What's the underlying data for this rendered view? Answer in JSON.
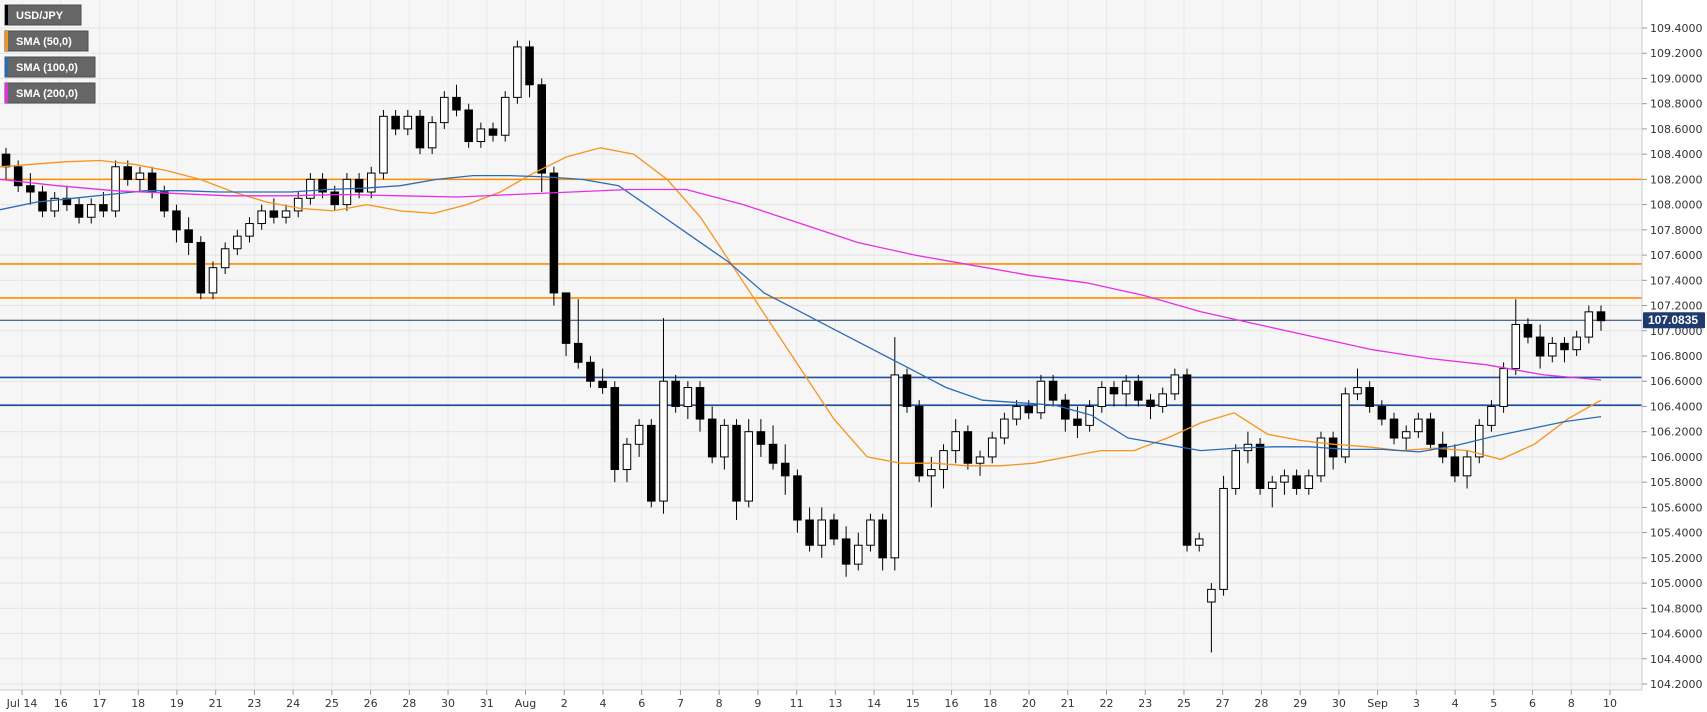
{
  "chart_data": {
    "type": "candlestick",
    "symbol": "USD/JPY",
    "ylim": [
      104.2,
      109.4
    ],
    "y_ticks": [
      "109.4000",
      "109.2000",
      "109.0000",
      "108.8000",
      "108.6000",
      "108.4000",
      "108.2000",
      "108.0000",
      "107.8000",
      "107.6000",
      "107.4000",
      "107.2000",
      "107.0000",
      "106.8000",
      "106.6000",
      "106.4000",
      "106.2000",
      "106.0000",
      "105.8000",
      "105.6000",
      "105.4000",
      "105.2000",
      "105.0000",
      "104.8000",
      "104.6000",
      "104.4000",
      "104.2000"
    ],
    "x_ticks": [
      "Jul 14",
      "16",
      "17",
      "18",
      "19",
      "21",
      "23",
      "24",
      "25",
      "26",
      "28",
      "30",
      "31",
      "Aug",
      "2",
      "4",
      "6",
      "7",
      "8",
      "9",
      "11",
      "13",
      "14",
      "15",
      "16",
      "18",
      "20",
      "21",
      "22",
      "23",
      "25",
      "27",
      "28",
      "29",
      "30",
      "Sep",
      "3",
      "4",
      "5",
      "6",
      "8",
      "10"
    ],
    "candles": [
      [
        108.4,
        108.45,
        108.2,
        108.3
      ],
      [
        108.3,
        108.35,
        108.1,
        108.15
      ],
      [
        108.15,
        108.25,
        108.0,
        108.1
      ],
      [
        108.1,
        108.15,
        107.9,
        107.95
      ],
      [
        107.95,
        108.1,
        107.9,
        108.05
      ],
      [
        108.05,
        108.15,
        107.95,
        108.0
      ],
      [
        108.0,
        108.05,
        107.85,
        107.9
      ],
      [
        107.9,
        108.05,
        107.85,
        108.0
      ],
      [
        108.0,
        108.1,
        107.9,
        107.95
      ],
      [
        107.95,
        108.35,
        107.9,
        108.3
      ],
      [
        108.3,
        108.35,
        108.15,
        108.2
      ],
      [
        108.2,
        108.3,
        108.1,
        108.25
      ],
      [
        108.25,
        108.3,
        108.05,
        108.1
      ],
      [
        108.1,
        108.15,
        107.9,
        107.95
      ],
      [
        107.95,
        108.0,
        107.7,
        107.8
      ],
      [
        107.8,
        107.9,
        107.6,
        107.7
      ],
      [
        107.7,
        107.75,
        107.25,
        107.3
      ],
      [
        107.3,
        107.55,
        107.25,
        107.5
      ],
      [
        107.5,
        107.7,
        107.45,
        107.65
      ],
      [
        107.65,
        107.8,
        107.6,
        107.75
      ],
      [
        107.75,
        107.9,
        107.7,
        107.85
      ],
      [
        107.85,
        108.0,
        107.8,
        107.95
      ],
      [
        107.95,
        108.05,
        107.85,
        107.9
      ],
      [
        107.9,
        108.0,
        107.85,
        107.95
      ],
      [
        107.95,
        108.1,
        107.9,
        108.05
      ],
      [
        108.05,
        108.25,
        108.0,
        108.2
      ],
      [
        108.2,
        108.25,
        108.05,
        108.1
      ],
      [
        108.1,
        108.15,
        107.95,
        108.0
      ],
      [
        108.0,
        108.25,
        107.95,
        108.2
      ],
      [
        108.2,
        108.25,
        108.05,
        108.1
      ],
      [
        108.1,
        108.3,
        108.05,
        108.25
      ],
      [
        108.25,
        108.75,
        108.2,
        108.7
      ],
      [
        108.7,
        108.75,
        108.55,
        108.6
      ],
      [
        108.6,
        108.75,
        108.55,
        108.7
      ],
      [
        108.7,
        108.75,
        108.4,
        108.45
      ],
      [
        108.45,
        108.7,
        108.4,
        108.65
      ],
      [
        108.65,
        108.9,
        108.6,
        108.85
      ],
      [
        108.85,
        108.95,
        108.7,
        108.75
      ],
      [
        108.75,
        108.8,
        108.45,
        108.5
      ],
      [
        108.5,
        108.65,
        108.45,
        108.6
      ],
      [
        108.6,
        108.65,
        108.5,
        108.55
      ],
      [
        108.55,
        108.9,
        108.5,
        108.85
      ],
      [
        108.85,
        109.3,
        108.8,
        109.25
      ],
      [
        109.25,
        109.3,
        108.85,
        108.95
      ],
      [
        108.95,
        109.0,
        108.1,
        108.25
      ],
      [
        108.25,
        108.3,
        107.2,
        107.3
      ],
      [
        107.3,
        107.3,
        106.8,
        106.9
      ],
      [
        106.9,
        107.25,
        106.7,
        106.75
      ],
      [
        106.75,
        106.8,
        106.55,
        106.6
      ],
      [
        106.6,
        106.7,
        106.5,
        106.55
      ],
      [
        106.55,
        106.6,
        105.8,
        105.9
      ],
      [
        105.9,
        106.15,
        105.8,
        106.1
      ],
      [
        106.1,
        106.3,
        106.0,
        106.25
      ],
      [
        106.25,
        106.3,
        105.6,
        105.65
      ],
      [
        105.65,
        107.1,
        105.55,
        106.6
      ],
      [
        106.6,
        106.65,
        106.35,
        106.4
      ],
      [
        106.4,
        106.6,
        106.3,
        106.55
      ],
      [
        106.55,
        106.6,
        106.2,
        106.3
      ],
      [
        106.3,
        106.4,
        105.95,
        106.0
      ],
      [
        106.0,
        106.3,
        105.9,
        106.25
      ],
      [
        106.25,
        106.3,
        105.5,
        105.65
      ],
      [
        105.65,
        106.3,
        105.6,
        106.2
      ],
      [
        106.2,
        106.3,
        106.0,
        106.1
      ],
      [
        106.1,
        106.25,
        105.9,
        105.95
      ],
      [
        105.95,
        106.1,
        105.7,
        105.85
      ],
      [
        105.85,
        105.9,
        105.4,
        105.5
      ],
      [
        105.5,
        105.6,
        105.25,
        105.3
      ],
      [
        105.3,
        105.6,
        105.2,
        105.5
      ],
      [
        105.5,
        105.55,
        105.3,
        105.35
      ],
      [
        105.35,
        105.45,
        105.05,
        105.15
      ],
      [
        105.15,
        105.4,
        105.1,
        105.3
      ],
      [
        105.3,
        105.55,
        105.25,
        105.5
      ],
      [
        105.5,
        105.55,
        105.1,
        105.2
      ],
      [
        105.2,
        106.95,
        105.1,
        106.65
      ],
      [
        106.65,
        106.7,
        106.35,
        106.4
      ],
      [
        106.4,
        106.45,
        105.8,
        105.85
      ],
      [
        105.85,
        106.0,
        105.6,
        105.9
      ],
      [
        105.9,
        106.1,
        105.75,
        106.05
      ],
      [
        106.05,
        106.3,
        105.95,
        106.2
      ],
      [
        106.2,
        106.25,
        105.9,
        105.95
      ],
      [
        105.95,
        106.05,
        105.85,
        106.0
      ],
      [
        106.0,
        106.2,
        105.95,
        106.15
      ],
      [
        106.15,
        106.35,
        106.1,
        106.3
      ],
      [
        106.3,
        106.45,
        106.25,
        106.4
      ],
      [
        106.4,
        106.45,
        106.3,
        106.35
      ],
      [
        106.35,
        106.65,
        106.3,
        106.6
      ],
      [
        106.6,
        106.65,
        106.4,
        106.45
      ],
      [
        106.45,
        106.5,
        106.2,
        106.3
      ],
      [
        106.3,
        106.4,
        106.15,
        106.25
      ],
      [
        106.25,
        106.45,
        106.2,
        106.4
      ],
      [
        106.4,
        106.6,
        106.35,
        106.55
      ],
      [
        106.55,
        106.6,
        106.4,
        106.5
      ],
      [
        106.5,
        106.65,
        106.4,
        106.6
      ],
      [
        106.6,
        106.65,
        106.4,
        106.45
      ],
      [
        106.45,
        106.5,
        106.3,
        106.4
      ],
      [
        106.4,
        106.55,
        106.35,
        106.5
      ],
      [
        106.5,
        106.7,
        106.45,
        106.65
      ],
      [
        106.65,
        106.7,
        105.25,
        105.3
      ],
      [
        105.3,
        105.4,
        105.25,
        105.35
      ],
      [
        104.85,
        105.0,
        104.45,
        104.95
      ],
      [
        104.95,
        105.85,
        104.9,
        105.75
      ],
      [
        105.75,
        106.1,
        105.7,
        106.05
      ],
      [
        106.05,
        106.2,
        105.95,
        106.1
      ],
      [
        106.1,
        106.15,
        105.7,
        105.75
      ],
      [
        105.75,
        105.85,
        105.6,
        105.8
      ],
      [
        105.8,
        105.9,
        105.7,
        105.85
      ],
      [
        105.85,
        105.9,
        105.7,
        105.75
      ],
      [
        105.75,
        105.9,
        105.7,
        105.85
      ],
      [
        105.85,
        106.2,
        105.8,
        106.15
      ],
      [
        106.15,
        106.2,
        105.9,
        106.0
      ],
      [
        106.0,
        106.55,
        105.95,
        106.5
      ],
      [
        106.5,
        106.7,
        106.45,
        106.55
      ],
      [
        106.55,
        106.6,
        106.35,
        106.4
      ],
      [
        106.4,
        106.45,
        106.25,
        106.3
      ],
      [
        106.3,
        106.35,
        106.1,
        106.15
      ],
      [
        106.15,
        106.25,
        106.05,
        106.2
      ],
      [
        106.2,
        106.35,
        106.15,
        106.3
      ],
      [
        106.3,
        106.35,
        106.05,
        106.1
      ],
      [
        106.1,
        106.2,
        105.95,
        106.0
      ],
      [
        106.0,
        106.1,
        105.8,
        105.85
      ],
      [
        105.85,
        106.05,
        105.75,
        106.0
      ],
      [
        106.0,
        106.3,
        105.95,
        106.25
      ],
      [
        106.25,
        106.45,
        106.2,
        106.4
      ],
      [
        106.4,
        106.75,
        106.35,
        106.7
      ],
      [
        106.7,
        107.25,
        106.65,
        107.05
      ],
      [
        107.05,
        107.1,
        106.9,
        106.95
      ],
      [
        106.95,
        107.05,
        106.7,
        106.8
      ],
      [
        106.8,
        106.95,
        106.75,
        106.9
      ],
      [
        106.9,
        106.95,
        106.75,
        106.85
      ],
      [
        106.85,
        107.0,
        106.8,
        106.95
      ],
      [
        106.95,
        107.2,
        106.9,
        107.15
      ],
      [
        107.15,
        107.2,
        107.0,
        107.08
      ]
    ],
    "series": [
      {
        "name": "SMA (50,0)",
        "color": "#f7931e",
        "values": [
          108.3,
          108.32,
          108.34,
          108.35,
          108.32,
          108.27,
          108.2,
          108.1,
          108.02,
          107.97,
          107.95,
          108.0,
          107.95,
          107.93,
          108.0,
          108.1,
          108.25,
          108.38,
          108.45,
          108.4,
          108.2,
          107.9,
          107.5,
          107.1,
          106.7,
          106.3,
          106.0,
          105.95,
          105.95,
          105.93,
          105.93,
          105.95,
          106.0,
          106.05,
          106.05,
          106.15,
          106.27,
          106.35,
          106.18,
          106.13,
          106.1,
          106.08,
          106.05,
          106.07,
          106.05,
          105.98,
          106.1,
          106.3,
          106.45
        ]
      },
      {
        "name": "SMA (100,0)",
        "color": "#2a6bb7",
        "values": [
          107.96,
          108.02,
          108.05,
          108.08,
          108.11,
          108.11,
          108.1,
          108.1,
          108.1,
          108.12,
          108.13,
          108.15,
          108.2,
          108.23,
          108.23,
          108.22,
          108.2,
          108.15,
          107.95,
          107.75,
          107.55,
          107.3,
          107.15,
          107.0,
          106.85,
          106.7,
          106.55,
          106.45,
          106.43,
          106.41,
          106.33,
          106.15,
          106.1,
          106.05,
          106.07,
          106.08,
          106.08,
          106.06,
          106.06,
          106.04,
          106.09,
          106.16,
          106.22,
          106.28,
          106.32
        ]
      },
      {
        "name": "SMA (200,0)",
        "color": "#e62ee6",
        "values": [
          108.2,
          108.15,
          108.11,
          108.09,
          108.07,
          108.07,
          108.08,
          108.07,
          108.06,
          108.08,
          108.1,
          108.12,
          108.12,
          108.0,
          107.85,
          107.7,
          107.6,
          107.52,
          107.44,
          107.38,
          107.28,
          107.15,
          107.05,
          106.95,
          106.85,
          106.78,
          106.73,
          106.65,
          106.61
        ]
      }
    ],
    "horizontal_lines": [
      {
        "value": 108.2,
        "color": "#ff8c00"
      },
      {
        "value": 107.53,
        "color": "#ff8c00"
      },
      {
        "value": 107.26,
        "color": "#ff8c00"
      },
      {
        "value": 106.63,
        "color": "#1f4e9e"
      },
      {
        "value": 106.41,
        "color": "#1f4e9e"
      },
      {
        "value": 107.0835,
        "color": "#1f3a6e"
      }
    ],
    "current_price": "107.0835",
    "legend": [
      {
        "label": "USD/JPY",
        "color": "#000000"
      },
      {
        "label": "SMA (50,0)",
        "color": "#f7931e"
      },
      {
        "label": "SMA (100,0)",
        "color": "#2a6bb7"
      },
      {
        "label": "SMA (200,0)",
        "color": "#e62ee6"
      }
    ],
    "grid": true,
    "legend_placement": "top-left"
  }
}
